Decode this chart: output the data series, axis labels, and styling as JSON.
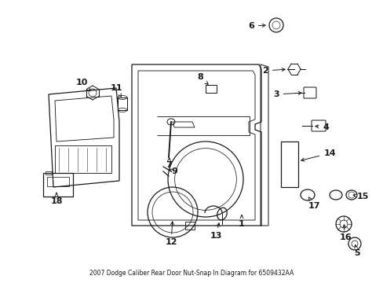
{
  "title": "2007 Dodge Caliber Rear Door Nut-Snap In Diagram for 6509432AA",
  "bg_color": "#ffffff",
  "line_color": "#1a1a1a",
  "figsize": [
    4.89,
    3.6
  ],
  "dpi": 100
}
